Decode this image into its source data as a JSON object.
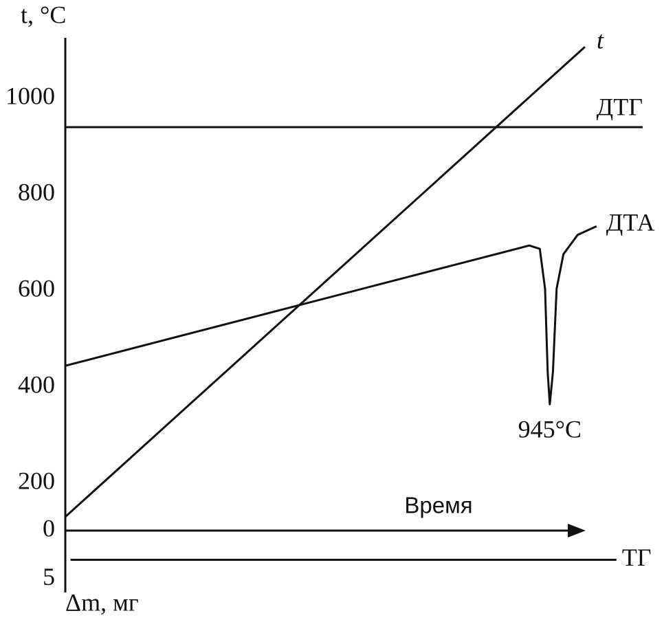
{
  "chart_data": [
    {
      "type": "line",
      "y_label": "t, °C",
      "xlim": [
        0,
        110
      ],
      "ylim": [
        100,
        1125
      ],
      "yticks": [
        200,
        400,
        600,
        800,
        1000
      ],
      "grid": false,
      "annotations": [
        {
          "text": "945°C",
          "x": 92.3,
          "y": 364
        }
      ],
      "series": [
        {
          "name": "t",
          "color": "#111111",
          "x": [
            0,
            99
          ],
          "values": [
            130,
            1107
          ]
        },
        {
          "name": "ДТГ",
          "color": "#111111",
          "x": [
            0,
            110
          ],
          "values": [
            940,
            940
          ]
        },
        {
          "name": "ДТА",
          "color": "#111111",
          "x": [
            0,
            88.4,
            90.4,
            91.4,
            91.9,
            92.3,
            92.9,
            93.6,
            94.9,
            97.6,
            101.2
          ],
          "values": [
            444,
            694,
            687,
            604,
            431,
            364,
            431,
            604,
            676,
            716,
            734
          ]
        }
      ]
    },
    {
      "type": "line",
      "x_label": "Время",
      "y_label": "Δm, мг",
      "xlim": [
        0,
        110
      ],
      "ylim": [
        6,
        0
      ],
      "yticks": [
        0,
        5
      ],
      "grid": false,
      "series": [
        {
          "name": "ТГ",
          "color": "#111111",
          "x": [
            1,
            105
          ],
          "values": [
            3,
            3
          ]
        }
      ]
    }
  ]
}
